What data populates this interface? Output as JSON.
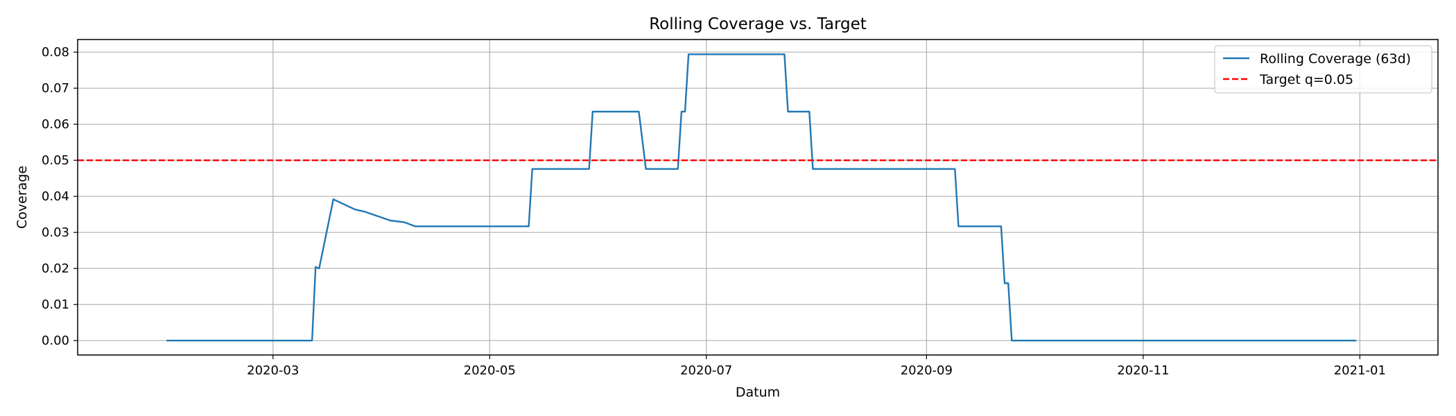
{
  "chart_data": {
    "type": "line",
    "title": "Rolling Coverage vs. Target",
    "xlabel": "Datum",
    "ylabel": "Coverage",
    "xlim": [
      "2020-01-06",
      "2021-01-23"
    ],
    "ylim": [
      -0.004,
      0.0835
    ],
    "grid": true,
    "legend_position": "top-right",
    "x_ticks": [
      {
        "date": "2020-03-01",
        "label": "2020-03"
      },
      {
        "date": "2020-05-01",
        "label": "2020-05"
      },
      {
        "date": "2020-07-01",
        "label": "2020-07"
      },
      {
        "date": "2020-09-01",
        "label": "2020-09"
      },
      {
        "date": "2020-11-01",
        "label": "2020-11"
      },
      {
        "date": "2021-01-01",
        "label": "2021-01"
      }
    ],
    "y_ticks": [
      {
        "value": 0.0,
        "label": "0.00"
      },
      {
        "value": 0.01,
        "label": "0.01"
      },
      {
        "value": 0.02,
        "label": "0.02"
      },
      {
        "value": 0.03,
        "label": "0.03"
      },
      {
        "value": 0.04,
        "label": "0.04"
      },
      {
        "value": 0.05,
        "label": "0.05"
      },
      {
        "value": 0.06,
        "label": "0.06"
      },
      {
        "value": 0.07,
        "label": "0.07"
      },
      {
        "value": 0.08,
        "label": "0.08"
      }
    ],
    "series": [
      {
        "name": "Rolling Coverage (63d)",
        "color": "#1f77b4",
        "style": "solid",
        "points": [
          [
            "2020-01-31",
            0.0
          ],
          [
            "2020-03-12",
            0.0
          ],
          [
            "2020-03-13",
            0.0204
          ],
          [
            "2020-03-14",
            0.02
          ],
          [
            "2020-03-18",
            0.0392
          ],
          [
            "2020-03-24",
            0.0364
          ],
          [
            "2020-03-27",
            0.0357
          ],
          [
            "2020-04-03",
            0.0333
          ],
          [
            "2020-04-07",
            0.0328
          ],
          [
            "2020-04-10",
            0.0317
          ],
          [
            "2020-05-12",
            0.0317
          ],
          [
            "2020-05-13",
            0.0476
          ],
          [
            "2020-05-29",
            0.0476
          ],
          [
            "2020-05-30",
            0.0635
          ],
          [
            "2020-06-12",
            0.0635
          ],
          [
            "2020-06-14",
            0.0476
          ],
          [
            "2020-06-23",
            0.0476
          ],
          [
            "2020-06-24",
            0.0635
          ],
          [
            "2020-06-25",
            0.0635
          ],
          [
            "2020-06-26",
            0.0794
          ],
          [
            "2020-07-23",
            0.0794
          ],
          [
            "2020-07-24",
            0.0635
          ],
          [
            "2020-07-30",
            0.0635
          ],
          [
            "2020-07-31",
            0.0476
          ],
          [
            "2020-09-09",
            0.0476
          ],
          [
            "2020-09-10",
            0.0317
          ],
          [
            "2020-09-22",
            0.0317
          ],
          [
            "2020-09-23",
            0.0159
          ],
          [
            "2020-09-24",
            0.0159
          ],
          [
            "2020-09-25",
            0.0
          ],
          [
            "2020-12-31",
            0.0
          ]
        ]
      },
      {
        "name": "Target q=0.05",
        "color": "#ff0000",
        "style": "dashed",
        "constant": 0.05
      }
    ]
  }
}
